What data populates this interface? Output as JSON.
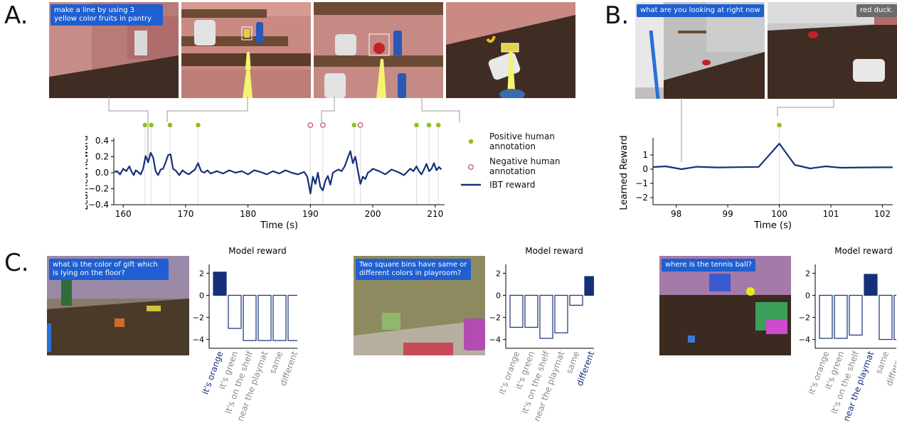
{
  "panels": {
    "a": "A.",
    "b": "B.",
    "c": "C."
  },
  "panel_a": {
    "frame_caption": "make a line by using 3 yellow color fruits in pantry",
    "legend": {
      "positive": "Positive human annotation",
      "negative": "Negative human annotation",
      "reward": "IBT reward"
    }
  },
  "panel_b": {
    "frame_caption_left": "what are you looking at right now",
    "frame_caption_right": "red duck."
  },
  "panel_c": {
    "title": "Model reward",
    "captions": [
      "what is the color of gift which is lying on the floor?",
      "Two square bins have same or different colors in playroom?",
      "where is the tennis ball?"
    ]
  },
  "colors": {
    "reward_line": "#15307a",
    "positive": "#8dc21f",
    "negative": "#b5224a",
    "caption_bg": "#1f5fd1"
  },
  "chart_data": [
    {
      "id": "a",
      "type": "line",
      "xlabel": "Time (s)",
      "ylabel": "Learned Reward",
      "xlim": [
        158.5,
        211.5
      ],
      "ylim": [
        -0.4,
        0.4
      ],
      "xticks": [
        160,
        170,
        180,
        190,
        200,
        210
      ],
      "yticks": [
        0.4,
        0.2,
        0.0,
        -0.2,
        -0.4
      ],
      "ytick_labels": [
        "0.4",
        "0.2",
        "0.0",
        "−0.2",
        "−0.4"
      ],
      "series": [
        {
          "name": "IBT reward",
          "x": [
            158.6,
            159.0,
            159.5,
            160.0,
            160.5,
            161.0,
            161.3,
            161.7,
            162.0,
            162.4,
            162.8,
            163.2,
            163.6,
            164.0,
            164.4,
            164.8,
            165.2,
            165.6,
            166.0,
            166.4,
            166.8,
            167.2,
            167.6,
            168.0,
            168.5,
            169.0,
            169.5,
            170.0,
            170.5,
            171.0,
            171.5,
            172.0,
            172.5,
            173.0,
            173.5,
            174.0,
            175.0,
            176.0,
            177.0,
            178.0,
            179.0,
            180.0,
            181.0,
            182.0,
            183.0,
            184.0,
            185.0,
            186.0,
            187.0,
            188.0,
            189.0,
            189.5,
            190.0,
            190.4,
            190.8,
            191.2,
            191.6,
            192.0,
            192.4,
            192.8,
            193.2,
            193.6,
            194.0,
            194.5,
            195.0,
            195.5,
            196.0,
            196.4,
            196.8,
            197.2,
            197.6,
            198.0,
            198.4,
            198.8,
            199.2,
            199.6,
            200.0,
            201.0,
            202.0,
            203.0,
            204.0,
            205.0,
            206.0,
            206.5,
            207.0,
            207.4,
            207.8,
            208.2,
            208.6,
            209.0,
            209.4,
            209.8,
            210.2,
            210.6,
            211.0
          ],
          "y": [
            0.01,
            0.02,
            -0.02,
            0.05,
            0.02,
            0.08,
            0.02,
            -0.03,
            0.03,
            0.01,
            -0.02,
            0.05,
            0.21,
            0.13,
            0.25,
            0.19,
            0.02,
            -0.03,
            0.04,
            0.05,
            0.13,
            0.22,
            0.23,
            0.05,
            0.02,
            -0.03,
            0.03,
            0.0,
            -0.02,
            0.01,
            0.04,
            0.12,
            0.02,
            0.0,
            0.03,
            -0.01,
            0.02,
            -0.01,
            0.03,
            0.0,
            0.02,
            -0.02,
            0.03,
            0.01,
            -0.02,
            0.02,
            -0.01,
            0.03,
            0.0,
            -0.02,
            0.01,
            -0.05,
            -0.26,
            -0.05,
            -0.14,
            0.0,
            -0.18,
            -0.22,
            -0.1,
            -0.04,
            -0.15,
            0.0,
            0.02,
            0.04,
            0.02,
            0.08,
            0.19,
            0.27,
            0.12,
            0.2,
            0.03,
            -0.14,
            -0.05,
            -0.08,
            0.0,
            0.02,
            0.05,
            0.02,
            -0.02,
            0.04,
            0.01,
            -0.03,
            0.05,
            0.02,
            0.08,
            0.02,
            -0.02,
            0.04,
            0.11,
            0.02,
            0.05,
            0.12,
            0.03,
            0.07,
            0.04
          ]
        }
      ],
      "positive_annotations": [
        163.5,
        164.5,
        167.5,
        172.0,
        197.0,
        207.0,
        209.0,
        210.5
      ],
      "negative_annotations": [
        190.0,
        192.0,
        198.0
      ]
    },
    {
      "id": "b",
      "type": "line",
      "xlabel": "Time (s)",
      "ylabel": "Learned Reward",
      "xlim": [
        97.55,
        102.2
      ],
      "ylim": [
        -2.5,
        2.0
      ],
      "xticks": [
        98,
        99,
        100,
        101,
        102
      ],
      "yticks": [
        1,
        0,
        -1,
        -2
      ],
      "ytick_labels": [
        "1",
        "0",
        "−1",
        "−2"
      ],
      "series": [
        {
          "name": "IBT reward",
          "x": [
            97.55,
            97.8,
            98.1,
            98.4,
            98.8,
            99.2,
            99.6,
            100.0,
            100.3,
            100.6,
            100.9,
            101.2,
            101.6,
            102.0,
            102.2
          ],
          "y": [
            0.15,
            0.2,
            0.0,
            0.17,
            0.12,
            0.14,
            0.16,
            1.8,
            0.3,
            0.05,
            0.2,
            0.1,
            0.12,
            0.13,
            0.13
          ]
        }
      ],
      "positive_annotations": [
        100.0
      ]
    },
    {
      "id": "c1",
      "type": "bar",
      "title": "Model reward",
      "categories": [
        "it's orange",
        "it's green",
        "it's on the shelf",
        "near the playmat",
        "same",
        "different"
      ],
      "values": [
        2.1,
        -3.0,
        -4.1,
        -4.1,
        -4.1,
        -4.1
      ],
      "highlight": "it's orange",
      "ylim": [
        -4.8,
        2.8
      ],
      "yticks": [
        2,
        0,
        -2,
        -4
      ],
      "ytick_labels": [
        "2",
        "0",
        "−2",
        "−4"
      ]
    },
    {
      "id": "c2",
      "type": "bar",
      "title": "Model reward",
      "categories": [
        "it's orange",
        "it's green",
        "it's on the shelf",
        "near the playmat",
        "same",
        "different"
      ],
      "values": [
        -2.9,
        -2.9,
        -3.9,
        -3.4,
        -0.9,
        1.7
      ],
      "highlight": "different",
      "ylim": [
        -4.8,
        2.8
      ],
      "yticks": [
        2,
        0,
        -2,
        -4
      ],
      "ytick_labels": [
        "2",
        "0",
        "−2",
        "−4"
      ]
    },
    {
      "id": "c3",
      "type": "bar",
      "title": "Model reward",
      "categories": [
        "it's orange",
        "it's green",
        "it's on the shelf",
        "near the playmat",
        "same",
        "different"
      ],
      "values": [
        -3.9,
        -3.9,
        -3.6,
        1.9,
        -4.0,
        -4.0
      ],
      "highlight": "near the playmat",
      "ylim": [
        -4.8,
        2.8
      ],
      "yticks": [
        2,
        0,
        -2,
        -4
      ],
      "ytick_labels": [
        "2",
        "0",
        "−2",
        "−4"
      ]
    }
  ]
}
